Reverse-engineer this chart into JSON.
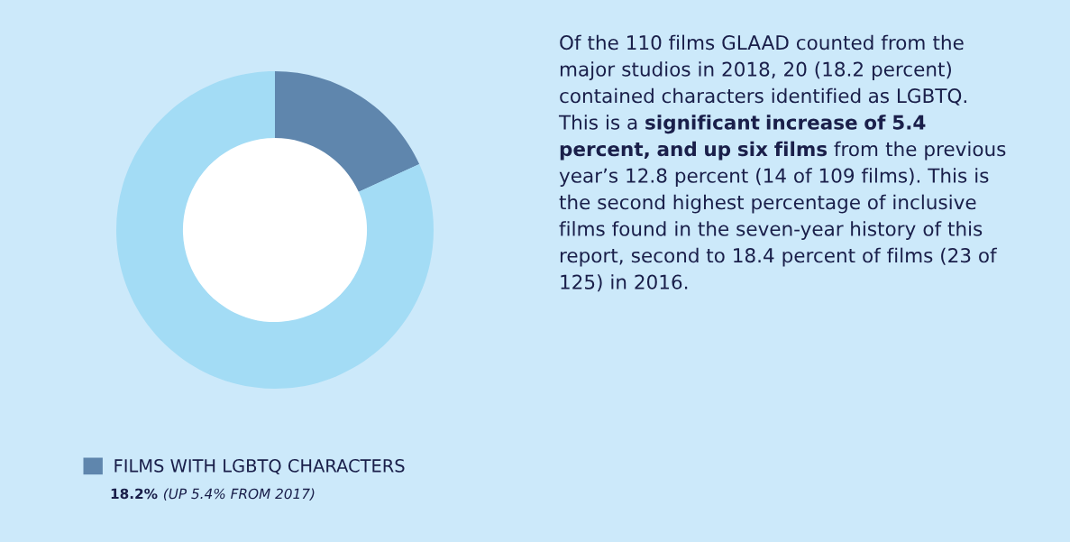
{
  "chart_data": {
    "type": "donut",
    "categories": [
      "FILMS WITH LGBTQ CHARACTERS",
      null
    ],
    "values": [
      18.2,
      81.8
    ],
    "colors": [
      "#5f86ad",
      "#a3dcf5"
    ],
    "value_labels": [
      "18.2%",
      null
    ],
    "legend": "bottom left",
    "annotations": [
      "Of the 110 films GLAAD counted from the major studios in 2018, 20 (18.2 percent) contained characters identified as LGBTQ. This is a",
      "significant increase of 5.4 percent, and up six films",
      "from the previous year’s 12.8 percent (14 of 109 films). This is the second highest percentage of inclusive films found in the seven-year history of this report, second to 18.4 percent of films (23 of 125) in 2016.",
      "(UP 5.4% FROM 2017)"
    ]
  }
}
